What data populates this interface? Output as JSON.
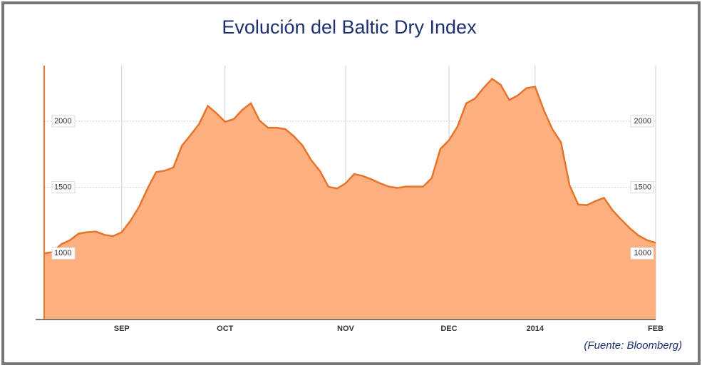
{
  "chart_data": {
    "type": "area",
    "title": "Evolución del Baltic Dry Index",
    "source": "(Fuente: Bloomberg)",
    "categories": [
      null,
      null,
      null,
      null,
      null,
      null,
      null,
      null,
      null,
      "SEP",
      null,
      null,
      null,
      null,
      null,
      null,
      null,
      null,
      null,
      null,
      null,
      "OCT",
      null,
      null,
      null,
      null,
      null,
      null,
      null,
      null,
      null,
      null,
      null,
      null,
      null,
      "NOV",
      null,
      null,
      null,
      null,
      null,
      null,
      null,
      null,
      null,
      null,
      null,
      "DEC",
      null,
      null,
      null,
      null,
      null,
      null,
      null,
      null,
      null,
      "2014",
      null,
      null,
      null,
      null,
      null,
      null,
      null,
      null,
      null,
      null,
      null,
      null,
      null,
      "FEB"
    ],
    "series": [
      {
        "name": "Baltic Dry Index",
        "color": "#e8742c",
        "fill": "#fdb07f",
        "values": [
          1000,
          1010,
          1070,
          1100,
          1150,
          1160,
          1165,
          1140,
          1130,
          1160,
          1245,
          1350,
          1490,
          1615,
          1625,
          1650,
          1815,
          1895,
          1980,
          2115,
          2060,
          1995,
          2015,
          2085,
          2135,
          2005,
          1950,
          1950,
          1940,
          1885,
          1815,
          1705,
          1625,
          1505,
          1490,
          1530,
          1600,
          1585,
          1560,
          1530,
          1505,
          1495,
          1505,
          1505,
          1505,
          1570,
          1790,
          1855,
          1960,
          2135,
          2170,
          2250,
          2320,
          2275,
          2160,
          2195,
          2250,
          2260,
          2085,
          1940,
          1840,
          1515,
          1370,
          1365,
          1395,
          1420,
          1325,
          1255,
          1190,
          1135,
          1100,
          1080
        ]
      }
    ],
    "ylim": [
      500,
      2420
    ],
    "yticks": [
      1000,
      1500,
      2000
    ],
    "grid": true
  }
}
